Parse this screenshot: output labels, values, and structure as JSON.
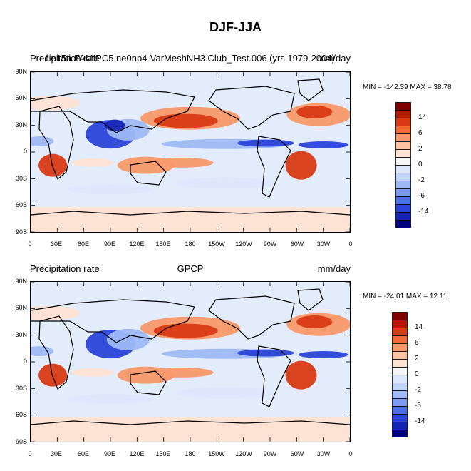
{
  "figure": {
    "title": "DJF-JJA"
  },
  "panels": [
    {
      "left_title": "Precipitation rate",
      "center_title": "f.e15a.FAMIPC5.ne0np4-VarMeshNH3.Club_Test.006 (yrs 1979-2004)",
      "right_title": "mm/day",
      "min_max": "MIN = -142.39  MAX =  38.78"
    },
    {
      "left_title": "Precipitation rate",
      "center_title": "GPCP",
      "right_title": "mm/day",
      "min_max": "MIN = -24.01  MAX =  12.11"
    }
  ],
  "axes": {
    "lat_labels": [
      "90N",
      "60N",
      "30N",
      "0",
      "30S",
      "60S",
      "90S"
    ],
    "lon_labels": [
      "0",
      "30E",
      "60E",
      "90E",
      "120E",
      "150E",
      "180",
      "150W",
      "120W",
      "90W",
      "60W",
      "30W",
      "0"
    ]
  },
  "colorbar": {
    "labels": [
      "14",
      "6",
      "2",
      "0",
      "-2",
      "-6",
      "-14"
    ],
    "colors": [
      "#7f0000",
      "#b31800",
      "#d93a14",
      "#f06a3a",
      "#f8996a",
      "#fcc3a3",
      "#fde3d3",
      "#f7f7f7",
      "#dde7fb",
      "#c0d4fa",
      "#9eb9f5",
      "#7b9af0",
      "#4e6fe8",
      "#2a44d9",
      "#1525b3",
      "#00007f"
    ]
  },
  "legend_colors": {
    "strong_wet": "#d93a14",
    "wet": "#f8996a",
    "light_wet": "#fde3d3",
    "neutral": "#f7f7f7",
    "light_dry": "#dde7fb",
    "dry": "#9eb9f5",
    "strong_dry": "#2a44d9"
  }
}
